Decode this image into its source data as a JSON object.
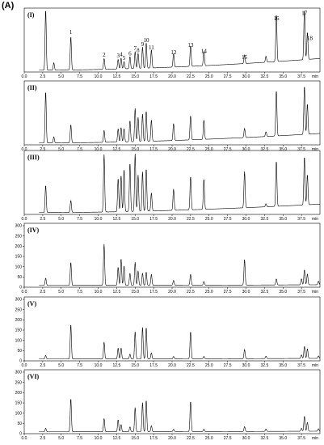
{
  "figure_label": "(A)",
  "chart_data": {
    "type": "line",
    "x_ticks": [
      "0.0",
      "2.5",
      "5.0",
      "7.5",
      "10.0",
      "12.5",
      "15.0",
      "17.5",
      "20.0",
      "22.5",
      "25.0",
      "27.5",
      "30.0",
      "32.5",
      "35.0",
      "37.5"
    ],
    "x_unit": "min",
    "xlim": [
      0,
      40
    ],
    "peak_labels": [
      {
        "label": "1",
        "t": 6.3
      },
      {
        "label": "2",
        "t": 10.8
      },
      {
        "label": "3",
        "t": 12.7
      },
      {
        "label": "4",
        "t": 13.1
      },
      {
        "label": "5",
        "t": 13.5
      },
      {
        "label": "6",
        "t": 14.3
      },
      {
        "label": "7",
        "t": 15.0
      },
      {
        "label": "8",
        "t": 15.4
      },
      {
        "label": "9",
        "t": 16.0
      },
      {
        "label": "10",
        "t": 16.5
      },
      {
        "label": "11",
        "t": 17.2
      },
      {
        "label": "12",
        "t": 20.2
      },
      {
        "label": "13",
        "t": 22.5
      },
      {
        "label": "14",
        "t": 24.3
      },
      {
        "label": "15",
        "t": 29.8
      },
      {
        "label": "16",
        "t": 34.1
      },
      {
        "label": "17",
        "t": 37.9
      },
      {
        "label": "18",
        "t": 38.3
      }
    ],
    "panels": [
      {
        "label": "(I)",
        "y_ticks": [],
        "baseline_rise": 0.55,
        "peaks": [
          [
            2.9,
            1.0
          ],
          [
            4.0,
            0.12
          ],
          [
            6.3,
            0.55
          ],
          [
            10.8,
            0.18
          ],
          [
            12.7,
            0.16
          ],
          [
            13.1,
            0.18
          ],
          [
            13.5,
            0.12
          ],
          [
            14.3,
            0.2
          ],
          [
            15.0,
            0.28
          ],
          [
            15.4,
            0.25
          ],
          [
            16.0,
            0.35
          ],
          [
            16.5,
            0.42
          ],
          [
            17.2,
            0.3
          ],
          [
            20.2,
            0.22
          ],
          [
            22.5,
            0.34
          ],
          [
            24.3,
            0.24
          ],
          [
            29.8,
            0.14
          ],
          [
            32.7,
            0.1
          ],
          [
            34.1,
            0.78
          ],
          [
            37.9,
            0.86
          ],
          [
            38.3,
            0.45
          ]
        ]
      },
      {
        "label": "(II)",
        "y_ticks": [],
        "baseline_rise": 0.45,
        "peaks": [
          [
            2.9,
            0.85
          ],
          [
            4.0,
            0.1
          ],
          [
            6.3,
            0.3
          ],
          [
            10.8,
            0.2
          ],
          [
            12.7,
            0.22
          ],
          [
            13.1,
            0.24
          ],
          [
            13.5,
            0.22
          ],
          [
            14.3,
            0.35
          ],
          [
            15.0,
            0.55
          ],
          [
            15.4,
            0.4
          ],
          [
            16.0,
            0.45
          ],
          [
            16.5,
            0.5
          ],
          [
            17.2,
            0.35
          ],
          [
            20.2,
            0.28
          ],
          [
            22.5,
            0.4
          ],
          [
            24.3,
            0.32
          ],
          [
            29.8,
            0.15
          ],
          [
            32.7,
            0.08
          ],
          [
            34.1,
            0.75
          ],
          [
            37.9,
            0.8
          ],
          [
            38.3,
            0.5
          ]
        ]
      },
      {
        "label": "(III)",
        "y_ticks": [],
        "baseline_rise": 0.4,
        "peaks": [
          [
            2.9,
            0.45
          ],
          [
            6.3,
            0.2
          ],
          [
            10.8,
            0.95
          ],
          [
            12.7,
            0.55
          ],
          [
            13.1,
            0.6
          ],
          [
            13.5,
            0.7
          ],
          [
            14.3,
            0.8
          ],
          [
            15.0,
            0.95
          ],
          [
            15.4,
            0.6
          ],
          [
            16.0,
            0.65
          ],
          [
            16.5,
            0.7
          ],
          [
            17.2,
            0.3
          ],
          [
            20.2,
            0.35
          ],
          [
            22.5,
            0.55
          ],
          [
            24.3,
            0.5
          ],
          [
            29.8,
            0.6
          ],
          [
            32.7,
            0.05
          ],
          [
            34.1,
            0.75
          ],
          [
            37.9,
            0.8
          ],
          [
            38.3,
            0.5
          ]
        ]
      },
      {
        "label": "(IV)",
        "y_ticks": [
          "0",
          "50",
          "100",
          "150",
          "200",
          "250",
          "300"
        ],
        "baseline_rise": 0.03,
        "peaks": [
          [
            2.9,
            0.12
          ],
          [
            6.3,
            0.38
          ],
          [
            10.8,
            0.68
          ],
          [
            12.7,
            0.3
          ],
          [
            13.1,
            0.44
          ],
          [
            13.5,
            0.32
          ],
          [
            14.3,
            0.2
          ],
          [
            15.0,
            0.38
          ],
          [
            15.4,
            0.24
          ],
          [
            16.0,
            0.2
          ],
          [
            16.5,
            0.22
          ],
          [
            17.2,
            0.18
          ],
          [
            20.2,
            0.08
          ],
          [
            22.5,
            0.18
          ],
          [
            24.3,
            0.06
          ],
          [
            29.8,
            0.42
          ],
          [
            34.1,
            0.1
          ],
          [
            37.5,
            0.1
          ],
          [
            37.9,
            0.25
          ],
          [
            38.3,
            0.18
          ],
          [
            39.8,
            0.06
          ]
        ]
      },
      {
        "label": "(V)",
        "y_ticks": [
          "0",
          "50",
          "100",
          "150",
          "200",
          "250",
          "300"
        ],
        "baseline_rise": 0.03,
        "peaks": [
          [
            2.9,
            0.06
          ],
          [
            6.3,
            0.57
          ],
          [
            10.8,
            0.28
          ],
          [
            12.7,
            0.18
          ],
          [
            13.1,
            0.18
          ],
          [
            14.3,
            0.08
          ],
          [
            15.0,
            0.45
          ],
          [
            16.0,
            0.52
          ],
          [
            16.5,
            0.52
          ],
          [
            17.2,
            0.1
          ],
          [
            20.2,
            0.04
          ],
          [
            22.5,
            0.45
          ],
          [
            24.3,
            0.04
          ],
          [
            29.8,
            0.15
          ],
          [
            32.7,
            0.04
          ],
          [
            37.5,
            0.06
          ],
          [
            37.9,
            0.2
          ],
          [
            38.3,
            0.16
          ],
          [
            39.8,
            0.04
          ]
        ]
      },
      {
        "label": "(VI)",
        "y_ticks": [
          "0",
          "50",
          "100",
          "150",
          "200",
          "250",
          "300"
        ],
        "baseline_rise": 0.03,
        "peaks": [
          [
            2.9,
            0.06
          ],
          [
            6.3,
            0.55
          ],
          [
            10.8,
            0.22
          ],
          [
            12.7,
            0.2
          ],
          [
            13.1,
            0.12
          ],
          [
            14.3,
            0.08
          ],
          [
            15.0,
            0.4
          ],
          [
            16.0,
            0.48
          ],
          [
            16.5,
            0.52
          ],
          [
            17.2,
            0.1
          ],
          [
            20.2,
            0.04
          ],
          [
            22.5,
            0.5
          ],
          [
            24.3,
            0.04
          ],
          [
            29.8,
            0.08
          ],
          [
            32.7,
            0.04
          ],
          [
            37.5,
            0.05
          ],
          [
            37.9,
            0.25
          ],
          [
            38.3,
            0.15
          ],
          [
            39.8,
            0.04
          ]
        ]
      }
    ]
  }
}
